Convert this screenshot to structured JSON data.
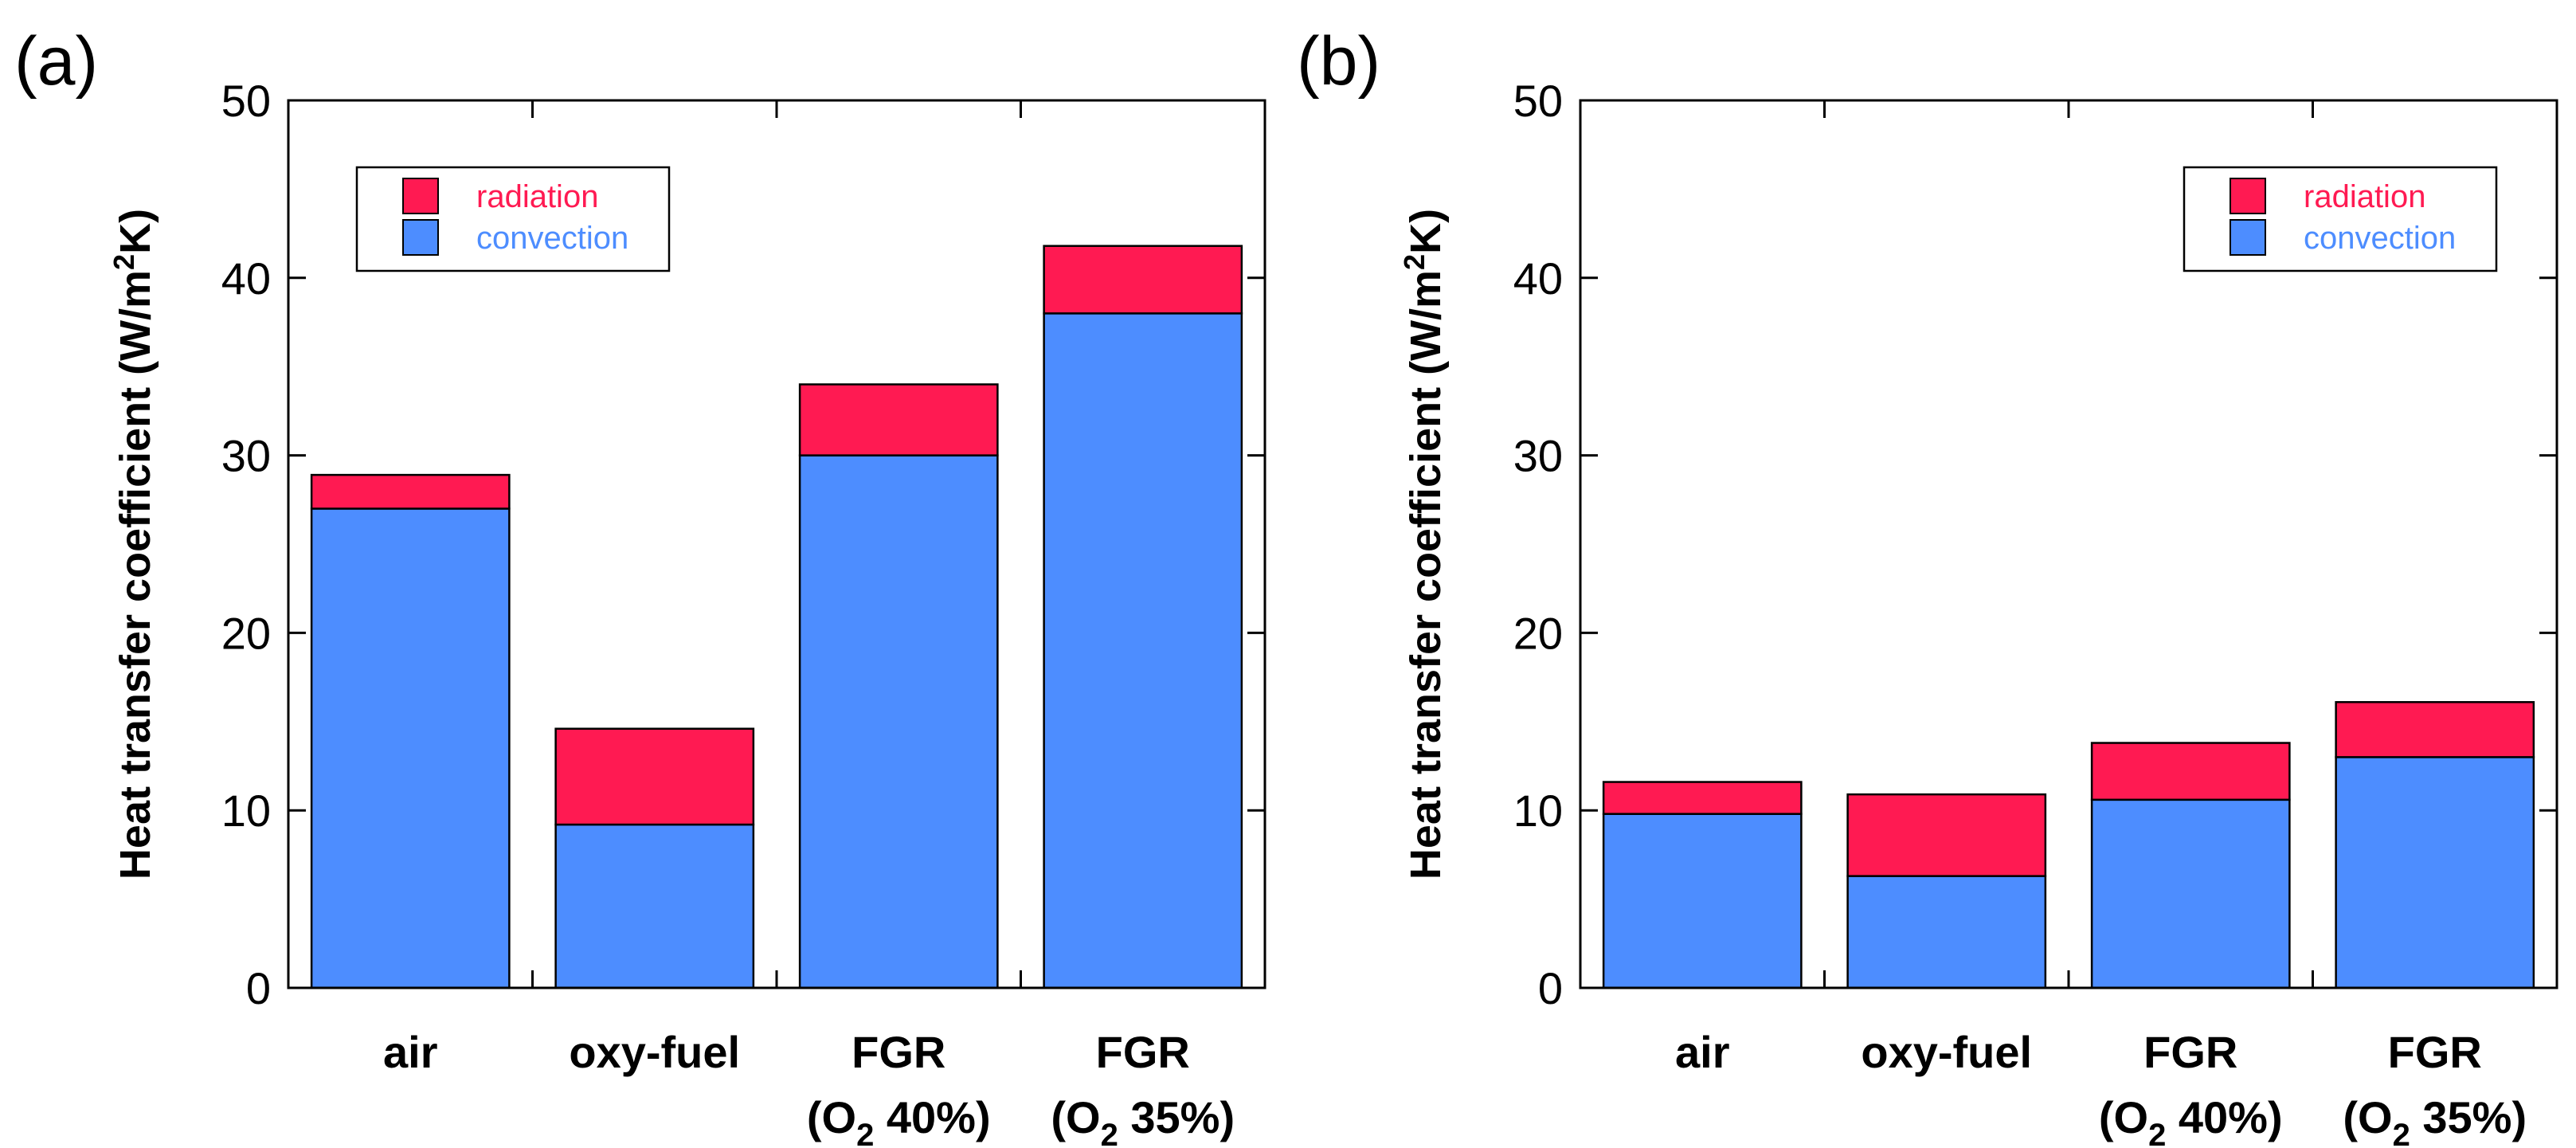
{
  "chart_data": [
    {
      "panel_label": "(a)",
      "type": "bar",
      "stacked": true,
      "categories": [
        [
          "air"
        ],
        [
          "oxy-fuel"
        ],
        [
          "FGR",
          "(O2 40%)"
        ],
        [
          "FGR",
          "(O2 35%)"
        ]
      ],
      "series": [
        {
          "name": "convection",
          "values": [
            27,
            9.2,
            30,
            38
          ],
          "color": "#4d8dff",
          "label_color": "#4d8dff"
        },
        {
          "name": "radiation",
          "values": [
            1.9,
            5.4,
            4,
            3.8
          ],
          "color": "#ff1a52",
          "label_color": "#ff1a52"
        }
      ],
      "legend_order": [
        "radiation",
        "convection"
      ],
      "legend_position": "top-left",
      "ylabel": "Heat transfer coefficient (W/m2K)",
      "ylim": [
        0,
        50
      ],
      "yticks": [
        0,
        10,
        20,
        30,
        40,
        50
      ],
      "grid": false
    },
    {
      "panel_label": "(b)",
      "type": "bar",
      "stacked": true,
      "categories": [
        [
          "air"
        ],
        [
          "oxy-fuel"
        ],
        [
          "FGR",
          "(O2 40%)"
        ],
        [
          "FGR",
          "(O2 35%)"
        ]
      ],
      "series": [
        {
          "name": "convection",
          "values": [
            9.8,
            6.3,
            10.6,
            13
          ],
          "color": "#4d8dff",
          "label_color": "#4d8dff"
        },
        {
          "name": "radiation",
          "values": [
            1.8,
            4.6,
            3.2,
            3.1
          ],
          "color": "#ff1a52",
          "label_color": "#ff1a52"
        }
      ],
      "legend_order": [
        "radiation",
        "convection"
      ],
      "legend_position": "top-right",
      "ylabel": "Heat transfer coefficient (W/m2K)",
      "ylim": [
        0,
        50
      ],
      "yticks": [
        0,
        10,
        20,
        30,
        40,
        50
      ],
      "grid": false
    }
  ]
}
